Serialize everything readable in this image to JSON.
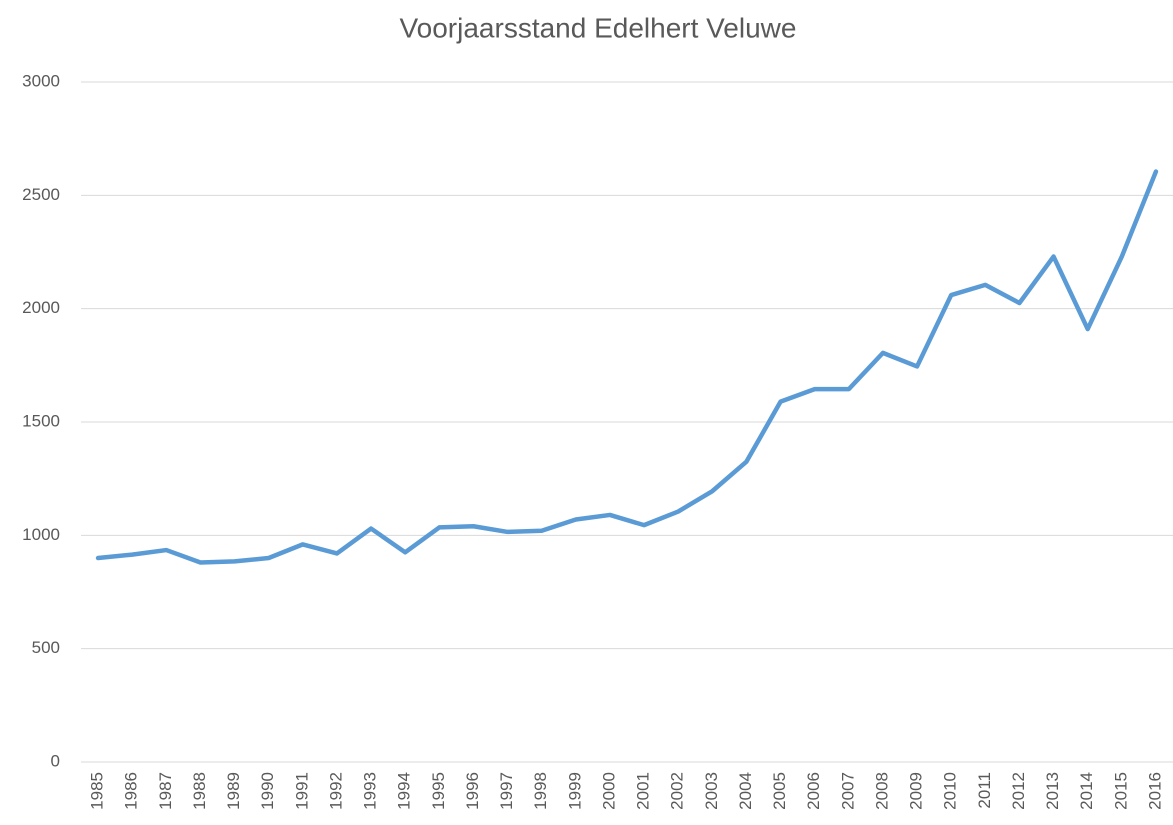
{
  "chart_data": {
    "type": "line",
    "title": "Voorjaarsstand Edelhert Veluwe",
    "categories": [
      "1985",
      "1986",
      "1987",
      "1988",
      "1989",
      "1990",
      "1991",
      "1992",
      "1993",
      "1994",
      "1995",
      "1996",
      "1997",
      "1998",
      "1999",
      "2000",
      "2001",
      "2002",
      "2003",
      "2004",
      "2005",
      "2006",
      "2007",
      "2008",
      "2009",
      "2010",
      "2011",
      "2012",
      "2013",
      "2014",
      "2015",
      "2016"
    ],
    "series": [
      {
        "name": "Voorjaarsstand",
        "color": "#5b9bd5",
        "values": [
          900,
          915,
          935,
          880,
          885,
          900,
          960,
          920,
          1030,
          925,
          1035,
          1040,
          1015,
          1020,
          1070,
          1090,
          1045,
          1105,
          1195,
          1325,
          1590,
          1645,
          1645,
          1805,
          1745,
          2060,
          2105,
          2025,
          2230,
          1910,
          2230,
          2605
        ]
      }
    ],
    "ylim": [
      0,
      3000
    ],
    "yticks": [
      0,
      500,
      1000,
      1500,
      2000,
      2500,
      3000
    ],
    "grid": true
  }
}
